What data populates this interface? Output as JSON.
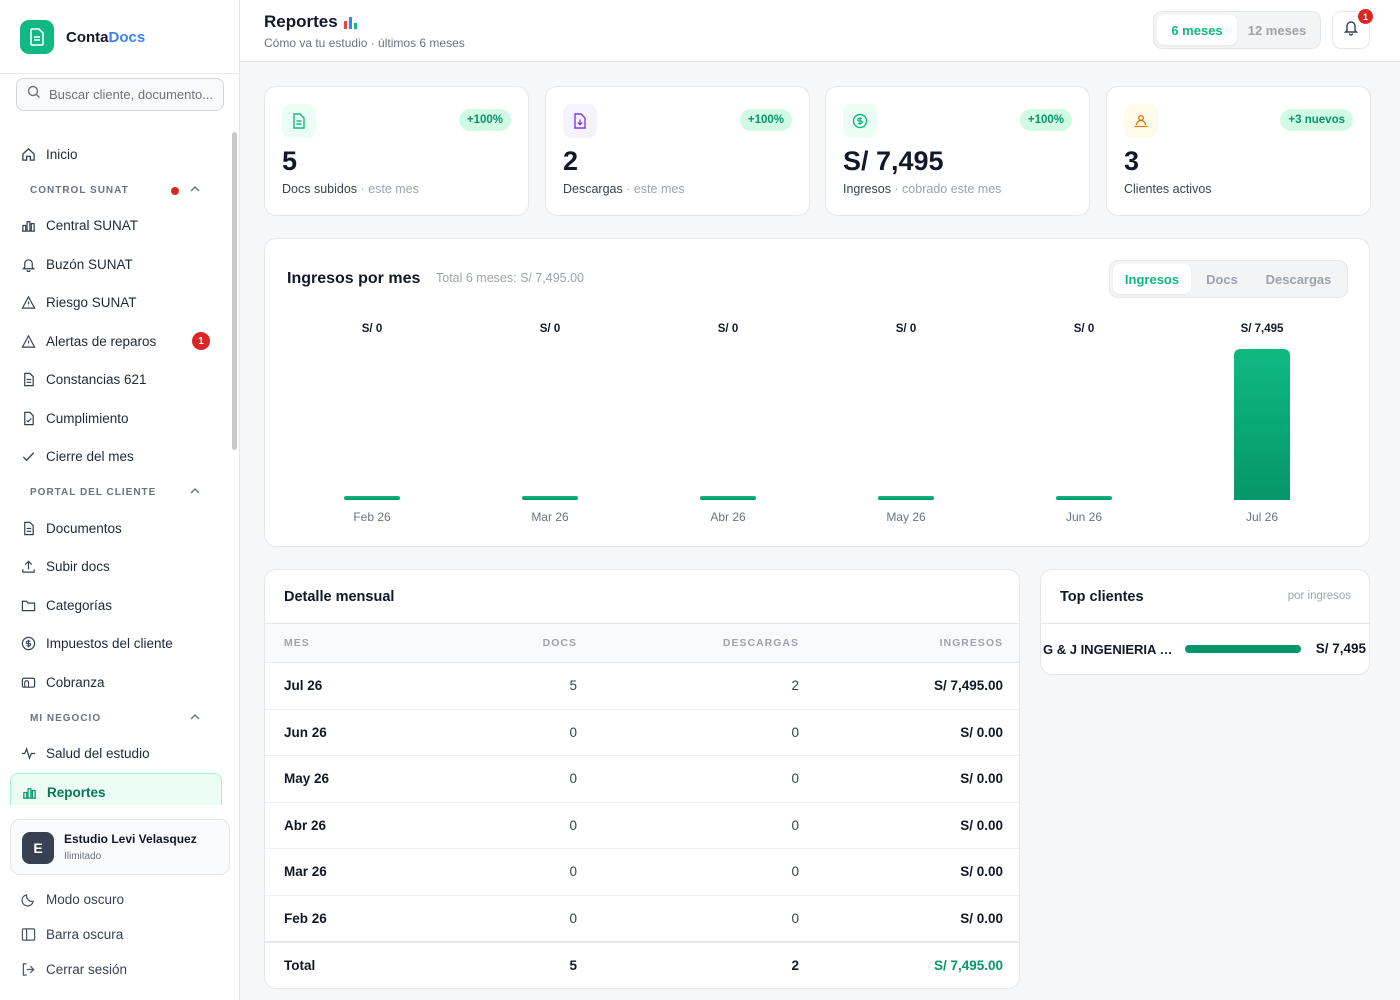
{
  "app": {
    "name_part1": "Conta",
    "name_part2": "Docs"
  },
  "search": {
    "placeholder": "Buscar cliente, documento..."
  },
  "sidebar": {
    "home": "Inicio",
    "sections": {
      "control_sunat": {
        "title": "CONTROL SUNAT",
        "items": [
          "Central SUNAT",
          "Buzón SUNAT",
          "Riesgo SUNAT",
          "Alertas de reparos",
          "Constancias 621",
          "Cumplimiento",
          "Cierre del mes"
        ],
        "alert_badge": "1"
      },
      "portal_cliente": {
        "title": "PORTAL DEL CLIENTE",
        "items": [
          "Documentos",
          "Subir docs",
          "Categorías",
          "Impuestos del cliente",
          "Cobranza"
        ]
      },
      "mi_negocio": {
        "title": "MI NEGOCIO",
        "items": [
          "Salud del estudio",
          "Reportes"
        ]
      }
    }
  },
  "user": {
    "avatar_letter": "E",
    "name": "Estudio Levi Velasquez",
    "plan": "Ilimitado"
  },
  "bottom": {
    "dark_mode": "Modo oscuro",
    "dark_bar": "Barra oscura",
    "logout": "Cerrar sesión"
  },
  "header": {
    "title": "Reportes",
    "subtitle": "Cómo va tu estudio · últimos 6 meses",
    "period_options": [
      "6 meses",
      "12 meses"
    ],
    "period_selected": "6 meses",
    "notifications": "1"
  },
  "kpis": [
    {
      "change": "+100%",
      "value": "5",
      "label": "Docs subidos",
      "sub": " · este mes"
    },
    {
      "change": "+100%",
      "value": "2",
      "label": "Descargas",
      "sub": " · este mes"
    },
    {
      "change": "+100%",
      "value": "S/ 7,495",
      "label": "Ingresos",
      "sub": " · cobrado este mes"
    },
    {
      "change": "+3 nuevos",
      "value": "3",
      "label": "Clientes activos",
      "sub": ""
    }
  ],
  "chart": {
    "title": "Ingresos por mes",
    "total": "Total 6 meses: S/ 7,495.00",
    "metrics": [
      "Ingresos",
      "Docs",
      "Descargas"
    ],
    "metric_selected": "Ingresos"
  },
  "chart_data": {
    "type": "bar",
    "categories": [
      "Feb 26",
      "Mar 26",
      "Abr 26",
      "May 26",
      "Jun 26",
      "Jul 26"
    ],
    "values": [
      0,
      0,
      0,
      0,
      0,
      7495
    ],
    "value_labels": [
      "S/ 0",
      "S/ 0",
      "S/ 0",
      "S/ 0",
      "S/ 0",
      "S/ 7,495"
    ],
    "title": "Ingresos por mes",
    "ylim": [
      0,
      7495
    ],
    "grid": false
  },
  "table": {
    "title": "Detalle mensual",
    "headers": [
      "MES",
      "DOCS",
      "DESCARGAS",
      "INGRESOS"
    ],
    "rows": [
      {
        "mes": "Jul 26",
        "docs": "5",
        "descargas": "2",
        "ingresos": "S/ 7,495.00"
      },
      {
        "mes": "Jun 26",
        "docs": "0",
        "descargas": "0",
        "ingresos": "S/ 0.00"
      },
      {
        "mes": "May 26",
        "docs": "0",
        "descargas": "0",
        "ingresos": "S/ 0.00"
      },
      {
        "mes": "Abr 26",
        "docs": "0",
        "descargas": "0",
        "ingresos": "S/ 0.00"
      },
      {
        "mes": "Mar 26",
        "docs": "0",
        "descargas": "0",
        "ingresos": "S/ 0.00"
      },
      {
        "mes": "Feb 26",
        "docs": "0",
        "descargas": "0",
        "ingresos": "S/ 0.00"
      }
    ],
    "total": {
      "label": "Total",
      "docs": "5",
      "descargas": "2",
      "ingresos": "S/ 7,495.00"
    }
  },
  "top_clients": {
    "title": "Top clientes",
    "subtitle": "por ingresos",
    "clients": [
      {
        "name": "G & J INGENIERIA SAC",
        "value": "S/ 7,495",
        "share": 1.0
      }
    ]
  },
  "colors": {
    "accent": "#10b981",
    "accent_dark": "#059669",
    "alert": "#dc2626",
    "brand_blue": "#3b82f6"
  }
}
